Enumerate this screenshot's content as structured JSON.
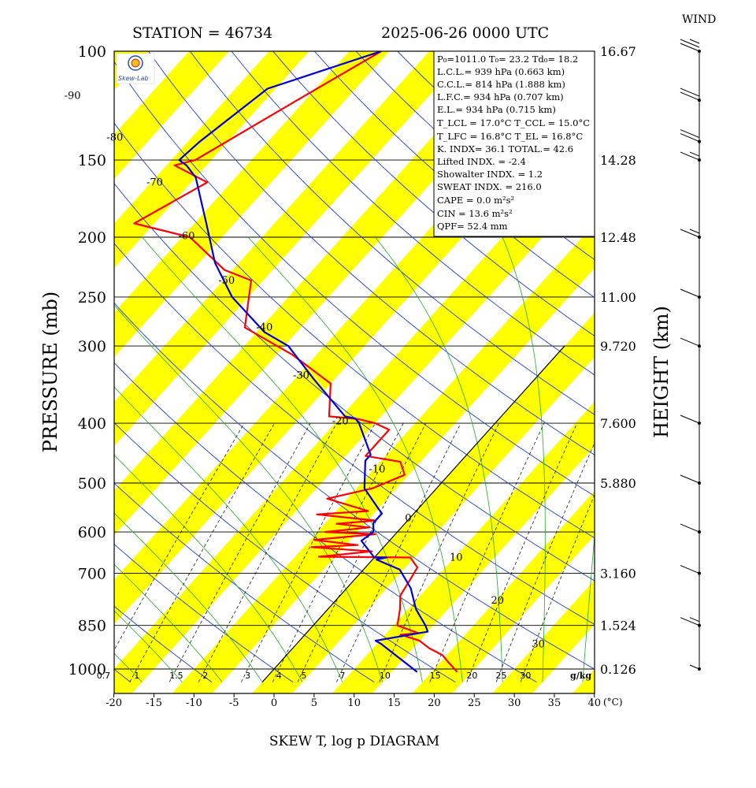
{
  "header": {
    "station": "STATION = 46734",
    "datetime": "2025-06-26 0000 UTC",
    "wind_label": "WIND",
    "logo_text": "Skew-Lab"
  },
  "axes": {
    "ylabel": "PRESSURE (mb)",
    "ylabel_right": "HEIGHT (km)",
    "xlabel": "SKEW T, log p DIAGRAM",
    "x_unit": "(°C)",
    "mixing_ratio_unit": "g/kg"
  },
  "info": {
    "line1": "P₀=1011.0  T₀= 23.2  Td₀= 18.2",
    "lcl": "L.C.L.=  939 hPa (0.663 km)",
    "ccl": "C.C.L.=  814 hPa (1.888 km)",
    "lfc": "L.F.C.=  934 hPa (0.707 km)",
    "el": "E.L.=  934 hPa (0.715 km)",
    "tlcl": "T_LCL = 17.0°C  T_CCL = 15.0°C",
    "tlfc": "T_LFC = 16.8°C  T_EL = 16.8°C",
    "kindx": "K. INDX= 36.1  TOTAL.= 42.6",
    "lifted": "Lifted INDX. =   -2.4",
    "showalter": "Showalter INDX. =     1.2",
    "sweat": "SWEAT INDX. =   216.0",
    "cape": "CAPE =     0.0 m²s²",
    "cin": "CIN   =    13.6 m²s²",
    "qpf": "QPF= 52.4 mm"
  },
  "chart_data": {
    "type": "line",
    "title": "SKEW T, log p DIAGRAM",
    "xlabel": "(°C)",
    "ylabel": "PRESSURE (mb)",
    "ylabel_right": "HEIGHT (km)",
    "xlim": [
      -20,
      40
    ],
    "ylim": [
      1000,
      100
    ],
    "x_ticks": [
      -20,
      -15,
      -10,
      -5,
      0,
      5,
      10,
      15,
      20,
      25,
      30,
      35,
      40
    ],
    "pressure_ticks": [
      100,
      150,
      200,
      250,
      300,
      400,
      500,
      600,
      700,
      850,
      1000
    ],
    "height_ticks": [
      {
        "p": 100,
        "label": "16.67"
      },
      {
        "p": 150,
        "label": "14.28"
      },
      {
        "p": 200,
        "label": "12.48"
      },
      {
        "p": 250,
        "label": "11.00"
      },
      {
        "p": 300,
        "label": "9.720"
      },
      {
        "p": 400,
        "label": "7.600"
      },
      {
        "p": 500,
        "label": "5.880"
      },
      {
        "p": 700,
        "label": "3.160"
      },
      {
        "p": 850,
        "label": "1.524"
      },
      {
        "p": 1000,
        "label": "0.126"
      }
    ],
    "isotherm_labels": [
      {
        "t": -90,
        "p": 118
      },
      {
        "t": -80,
        "p": 138
      },
      {
        "t": -70,
        "p": 163
      },
      {
        "t": -60,
        "p": 199
      },
      {
        "t": -50,
        "p": 235
      },
      {
        "t": -40,
        "p": 280
      },
      {
        "t": -30,
        "p": 335
      },
      {
        "t": -20,
        "p": 397
      },
      {
        "t": -10,
        "p": 475
      },
      {
        "t": 0,
        "p": 570
      },
      {
        "t": 10,
        "p": 660
      },
      {
        "t": 20,
        "p": 775
      },
      {
        "t": 30,
        "p": 912
      }
    ],
    "mixing_ratio_labels": [
      "0.7",
      "1",
      "1.5",
      "2",
      "3",
      "4",
      "5",
      "7",
      "10",
      "15",
      "20",
      "25",
      "30"
    ],
    "series": [
      {
        "name": "Temperature",
        "color": "#ff0000",
        "points": [
          [
            -56.0,
            100
          ],
          [
            -61.0,
            120
          ],
          [
            -67.0,
            150
          ],
          [
            -69.0,
            153
          ],
          [
            -63.0,
            163
          ],
          [
            -67.5,
            190
          ],
          [
            -59.0,
            200
          ],
          [
            -51.0,
            226
          ],
          [
            -46.5,
            235
          ],
          [
            -42.0,
            280
          ],
          [
            -33.0,
            310
          ],
          [
            -25.0,
            345
          ],
          [
            -21.5,
            390
          ],
          [
            -17.5,
            394
          ],
          [
            -15.0,
            400
          ],
          [
            -12.5,
            410
          ],
          [
            -12.5,
            452
          ],
          [
            -7.5,
            462
          ],
          [
            -5.5,
            485
          ],
          [
            -8.0,
            510
          ],
          [
            -12.5,
            530
          ],
          [
            -6.0,
            555
          ],
          [
            -12.0,
            562
          ],
          [
            -4.0,
            575
          ],
          [
            -8.5,
            582
          ],
          [
            -4.0,
            590
          ],
          [
            -9.0,
            600
          ],
          [
            -2.5,
            605
          ],
          [
            -9.5,
            618
          ],
          [
            -3.5,
            630
          ],
          [
            -9.0,
            635
          ],
          [
            -1.0,
            645
          ],
          [
            -7.0,
            658
          ],
          [
            4.5,
            660
          ],
          [
            6.5,
            685
          ],
          [
            7.0,
            720
          ],
          [
            7.5,
            760
          ],
          [
            9.0,
            800
          ],
          [
            10.5,
            850
          ],
          [
            14.0,
            875
          ],
          [
            12.0,
            880
          ],
          [
            15.0,
            900
          ],
          [
            17.0,
            925
          ],
          [
            19.5,
            950
          ],
          [
            21.0,
            975
          ],
          [
            23.2,
            1011
          ]
        ]
      },
      {
        "name": "Dew point",
        "color": "#0000dd",
        "points": [
          [
            -56.0,
            100
          ],
          [
            -66.0,
            115
          ],
          [
            -68.5,
            140
          ],
          [
            -69.0,
            150
          ],
          [
            -67.5,
            153
          ],
          [
            -65.0,
            160
          ],
          [
            -58.5,
            190
          ],
          [
            -53.0,
            220
          ],
          [
            -47.0,
            250
          ],
          [
            -39.0,
            285
          ],
          [
            -34.5,
            300
          ],
          [
            -27.5,
            340
          ],
          [
            -19.5,
            390
          ],
          [
            -18.0,
            393
          ],
          [
            -17.0,
            400
          ],
          [
            -12.0,
            450
          ],
          [
            -12.0,
            460
          ],
          [
            -9.0,
            510
          ],
          [
            -5.0,
            550
          ],
          [
            -4.0,
            560
          ],
          [
            -4.0,
            580
          ],
          [
            -3.0,
            600
          ],
          [
            -3.5,
            620
          ],
          [
            0.0,
            660
          ],
          [
            1.5,
            660
          ],
          [
            0.5,
            665
          ],
          [
            4.5,
            690
          ],
          [
            8.0,
            740
          ],
          [
            11.0,
            800
          ],
          [
            14.0,
            850
          ],
          [
            15.0,
            870
          ],
          [
            9.5,
            900
          ],
          [
            10.5,
            910
          ],
          [
            18.2,
            1011
          ]
        ]
      }
    ],
    "wind": {
      "unit": "knots",
      "barbs": [
        [
          100,
          0,
          25
        ],
        [
          120,
          0,
          20
        ],
        [
          140,
          0,
          20
        ],
        [
          150,
          0,
          15
        ],
        [
          200,
          0,
          15
        ],
        [
          250,
          0,
          10
        ],
        [
          300,
          0,
          10
        ],
        [
          400,
          0,
          10
        ],
        [
          500,
          0,
          10
        ],
        [
          600,
          0,
          10
        ],
        [
          700,
          0,
          10
        ],
        [
          850,
          0,
          15
        ],
        [
          1000,
          0,
          5
        ]
      ]
    }
  }
}
